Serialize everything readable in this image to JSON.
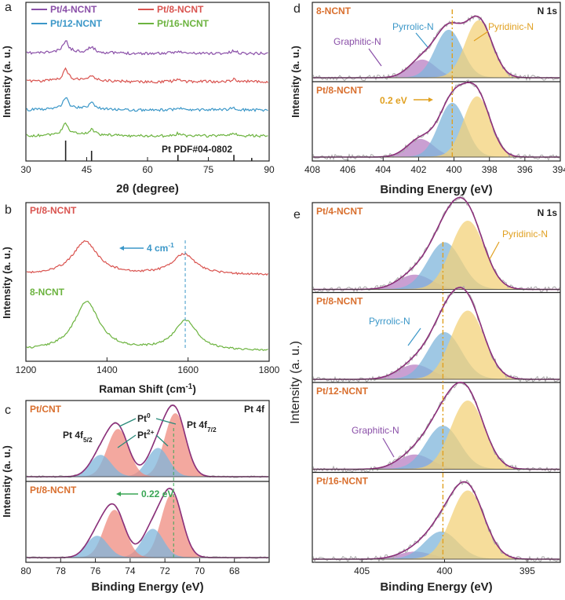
{
  "colors": {
    "purple": "#8a4fa8",
    "red": "#d9534f",
    "blue": "#3b97c8",
    "green": "#6cb33f",
    "orange": "#d96f2e",
    "gray": "#aaaaaa",
    "envelope": "#8b2f7a",
    "fit_red": "#ef8b80",
    "fit_blue": "#7fb6dc",
    "fit_yellow": "#f4d27a",
    "fit_purple": "#b97fc4",
    "dash_blue": "#3b97c8",
    "dash_green": "#3aa655",
    "dash_orange": "#e0a020",
    "black": "#222222"
  },
  "chart_data": [
    {
      "panel": "a",
      "type": "line",
      "ylabel": "Intensity (a. u.)",
      "xlabel": "2θ  (degree)",
      "xlim": [
        30,
        90
      ],
      "xticks": [
        "30",
        "45",
        "60",
        "75",
        "90"
      ],
      "reference": {
        "label": "Pt PDF#04-0802",
        "positions": [
          39.8,
          46.2,
          67.5,
          81.3,
          85.7
        ],
        "heights": [
          1.0,
          0.5,
          0.3,
          0.3,
          0.15
        ]
      },
      "series": [
        {
          "name": "Pt/4-NCNT",
          "color": "purple",
          "peaks": [
            39.8,
            46.2,
            67.5,
            81.3
          ]
        },
        {
          "name": "Pt/8-NCNT",
          "color": "red",
          "peaks": [
            39.8,
            46.2,
            67.5,
            81.3
          ]
        },
        {
          "name": "Pt/12-NCNT",
          "color": "blue",
          "peaks": [
            39.8,
            46.2,
            67.5,
            81.3
          ]
        },
        {
          "name": "Pt/16-NCNT",
          "color": "green",
          "peaks": [
            39.8,
            46.2,
            67.5,
            81.3
          ]
        }
      ]
    },
    {
      "panel": "b",
      "type": "line",
      "ylabel": "Intensity (a. u.)",
      "xlabel": "Raman Shift (cm",
      "xlabel_sup": "-1",
      "xlabel_tail": ")",
      "xlim": [
        1200,
        1800
      ],
      "xticks": [
        "1200",
        "1400",
        "1600",
        "1800"
      ],
      "series": [
        {
          "name": "Pt/8-NCNT",
          "color": "red",
          "D_band": 1346,
          "G_band": 1590
        },
        {
          "name": "8-NCNT",
          "color": "green",
          "D_band": 1350,
          "G_band": 1594
        }
      ],
      "annotation": {
        "text": "4 cm",
        "sup": "-1",
        "shift": 4
      }
    },
    {
      "panel": "c",
      "type": "line",
      "ylabel": "Intensity (a. u.)",
      "xlabel": "Binding Energy (eV)",
      "xlim": [
        80,
        66
      ],
      "xticks": [
        "80",
        "78",
        "76",
        "74",
        "72",
        "70",
        "68"
      ],
      "corner_label": "Pt 4f",
      "series": [
        {
          "name": "Pt/CNT",
          "components": [
            {
              "label": "Pt0 4f7/2",
              "center": 71.4,
              "amp": 1.0,
              "color": "fit_red"
            },
            {
              "label": "Pt2+ 4f7/2",
              "center": 72.4,
              "amp": 0.45,
              "color": "fit_blue"
            },
            {
              "label": "Pt0 4f5/2",
              "center": 74.7,
              "amp": 0.75,
              "color": "fit_red"
            },
            {
              "label": "Pt2+ 4f5/2",
              "center": 75.7,
              "amp": 0.34,
              "color": "fit_blue"
            }
          ]
        },
        {
          "name": "Pt/8-NCNT",
          "components": [
            {
              "label": "Pt0 4f7/2",
              "center": 71.6,
              "amp": 1.0,
              "color": "fit_red"
            },
            {
              "label": "Pt2+ 4f7/2",
              "center": 72.7,
              "amp": 0.45,
              "color": "fit_blue"
            },
            {
              "label": "Pt0 4f5/2",
              "center": 74.9,
              "amp": 0.75,
              "color": "fit_red"
            },
            {
              "label": "Pt2+ 4f5/2",
              "center": 75.9,
              "amp": 0.34,
              "color": "fit_blue"
            }
          ]
        }
      ],
      "annotations": {
        "pt4f52": "Pt 4f",
        "pt4f52_sub": "5/2",
        "pt4f72": "Pt 4f",
        "pt4f72_sub": "7/2",
        "pt0": "Pt",
        "pt0_sup": "0",
        "pt2": "Pt",
        "pt2_sup": "2+",
        "shift": "0.22 eV"
      }
    },
    {
      "panel": "d",
      "type": "line",
      "ylabel": "Intensity (a. u.)",
      "xlabel": "Binding Energy (eV)",
      "xlim": [
        408,
        394
      ],
      "xticks": [
        "408",
        "406",
        "404",
        "402",
        "400",
        "398",
        "396",
        "394"
      ],
      "corner_label": "N 1s",
      "series": [
        {
          "name": "8-NCNT",
          "components": [
            {
              "label": "Graphitic-N",
              "center": 401.8,
              "amp": 0.28,
              "color": "fit_purple"
            },
            {
              "label": "Pyrrolic-N",
              "center": 400.3,
              "amp": 0.75,
              "color": "fit_blue"
            },
            {
              "label": "Pyridinic-N",
              "center": 398.6,
              "amp": 0.9,
              "color": "fit_yellow"
            }
          ]
        },
        {
          "name": "Pt/8-NCNT",
          "components": [
            {
              "label": "Graphitic-N",
              "center": 401.9,
              "amp": 0.28,
              "color": "fit_purple"
            },
            {
              "label": "Pyrrolic-N",
              "center": 400.1,
              "amp": 0.85,
              "color": "fit_blue"
            },
            {
              "label": "Pyridinic-N",
              "center": 398.7,
              "amp": 0.95,
              "color": "fit_yellow"
            }
          ]
        }
      ],
      "annotations": {
        "graphitic": "Graphitic-N",
        "pyrrolic": "Pyrrolic-N",
        "pyridinic": "Pyridinic-N",
        "shift": "0.2 eV"
      }
    },
    {
      "panel": "e",
      "type": "line",
      "ylabel": "Intensity (a. u.)",
      "xlabel": "Binding Energy (eV)",
      "xlim": [
        408,
        393
      ],
      "xticks": [
        "405",
        "400",
        "395"
      ],
      "corner_label": "N 1s",
      "series": [
        {
          "name": "Pt/4-NCNT",
          "components": [
            {
              "label": "Graphitic-N",
              "center": 401.8,
              "amp": 0.2,
              "color": "fit_purple"
            },
            {
              "label": "Pyrrolic-N",
              "center": 400.0,
              "amp": 0.65,
              "color": "fit_blue"
            },
            {
              "label": "Pyridinic-N",
              "center": 398.6,
              "amp": 0.95,
              "color": "fit_yellow"
            }
          ]
        },
        {
          "name": "Pt/8-NCNT",
          "components": [
            {
              "label": "Graphitic-N",
              "center": 401.8,
              "amp": 0.2,
              "color": "fit_purple"
            },
            {
              "label": "Pyrrolic-N",
              "center": 400.0,
              "amp": 0.65,
              "color": "fit_blue"
            },
            {
              "label": "Pyridinic-N",
              "center": 398.6,
              "amp": 0.95,
              "color": "fit_yellow"
            }
          ]
        },
        {
          "name": "Pt/12-NCNT",
          "components": [
            {
              "label": "Graphitic-N",
              "center": 401.8,
              "amp": 0.2,
              "color": "fit_purple"
            },
            {
              "label": "Pyrrolic-N",
              "center": 400.1,
              "amp": 0.6,
              "color": "fit_blue"
            },
            {
              "label": "Pyridinic-N",
              "center": 398.6,
              "amp": 0.95,
              "color": "fit_yellow"
            }
          ]
        },
        {
          "name": "Pt/16-NCNT",
          "components": [
            {
              "label": "Graphitic-N",
              "center": 401.8,
              "amp": 0.1,
              "color": "fit_purple"
            },
            {
              "label": "Pyrrolic-N",
              "center": 400.2,
              "amp": 0.38,
              "color": "fit_blue"
            },
            {
              "label": "Pyridinic-N",
              "center": 398.6,
              "amp": 0.95,
              "color": "fit_yellow"
            }
          ]
        }
      ],
      "annotations": {
        "pyrrolic": "Pyrrolic-N",
        "pyridinic": "Pyridinic-N",
        "graphitic": "Graphitic-N"
      }
    }
  ]
}
